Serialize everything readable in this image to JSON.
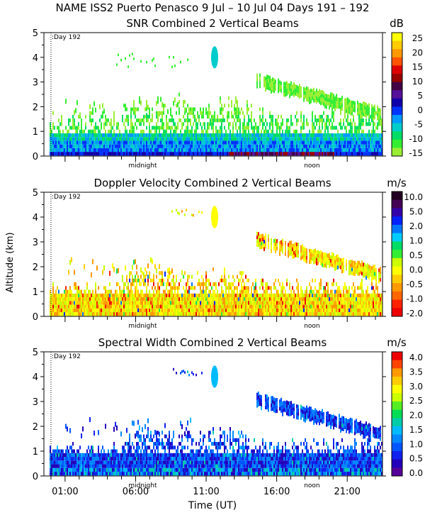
{
  "header": "NAME ISS2 Puerto Penasco    9 Jul – 10 Jul 04 Days 191 – 192",
  "ylabel": "Altitude (km)",
  "xlabel": "Time (UT)",
  "x_tick_labels": [
    "01:00",
    "06:00",
    "11:00",
    "16:00",
    "21:00"
  ],
  "x_tick_values_hours": [
    1,
    6,
    11,
    16,
    21
  ],
  "day_marker": ":Day 192",
  "day_marker_hour": 0,
  "midnight_label": "midnight",
  "noon_label": "noon",
  "y_ticks": [
    "0",
    "1",
    "2",
    "3",
    "4",
    "5"
  ],
  "chart_data": [
    {
      "type": "heatmap",
      "title": "SNR Combined 2 Vertical Beams",
      "unit": "dB",
      "xlim_hours": [
        -0.5,
        23.5
      ],
      "ylim_km": [
        0,
        5
      ],
      "colorbar": {
        "labels": [
          "25",
          "20",
          "15",
          "10",
          "5",
          "0",
          "-5",
          "-10",
          "-15"
        ],
        "colors": [
          "#ffff00",
          "#ffcc00",
          "#ff9900",
          "#ff5500",
          "#dd0000",
          "#990000",
          "#440044",
          "#551199",
          "#1100aa",
          "#0033ff",
          "#0099ff",
          "#00cccc",
          "#00dd66",
          "#33ee33",
          "#99ee33"
        ]
      },
      "summary": "Strong SNR (blue/red) below 0.5 km all day; green scattered echoes up to ~2 km; high layer ~3-3.2 km after 15:00 descending to ~1.5 km; feature near 4 km at ~11:00."
    },
    {
      "type": "heatmap",
      "title": "Doppler Velocity Combined 2 Vertical Beams",
      "unit": "m/s",
      "xlim_hours": [
        -0.5,
        23.5
      ],
      "ylim_km": [
        0,
        5
      ],
      "colorbar": {
        "labels": [
          "10.0",
          "5.0",
          "2.0",
          "1.0",
          "0.5",
          "0.0",
          "-0.5",
          "-1.0",
          "-2.0"
        ],
        "colors": [
          "#220022",
          "#440055",
          "#3300aa",
          "#0022ff",
          "#0077ff",
          "#00ccff",
          "#00dd66",
          "#33ee33",
          "#ccff00",
          "#ffff00",
          "#ffcc00",
          "#ff9900",
          "#ff6600",
          "#ff2200",
          "#ee0000"
        ]
      },
      "summary": "Mostly yellow/orange (about 0 to -1 m/s) throughout, with isolated red (down to -2 m/s) and scattered green/blue values."
    },
    {
      "type": "heatmap",
      "title": "Spectral Width Combined 2 Vertical Beams",
      "unit": "m/s",
      "xlim_hours": [
        -0.5,
        23.5
      ],
      "ylim_km": [
        0,
        5
      ],
      "colorbar": {
        "labels": [
          "4.0",
          "3.5",
          "3.0",
          "2.5",
          "2.0",
          "1.5",
          "1.0",
          "0.5",
          "0.0"
        ],
        "colors": [
          "#ee0000",
          "#ff4400",
          "#ff9900",
          "#ffcc00",
          "#ffff00",
          "#ccff00",
          "#55ee22",
          "#00dd55",
          "#00ccaa",
          "#00bbff",
          "#0088ff",
          "#0055ff",
          "#1122ee",
          "#2200bb",
          "#550099"
        ]
      },
      "summary": "Mostly blue (about 0.5 to 1.5 m/s) below 2 km and along the upper layer; cyan patches near the surface and the 4 km feature."
    }
  ]
}
